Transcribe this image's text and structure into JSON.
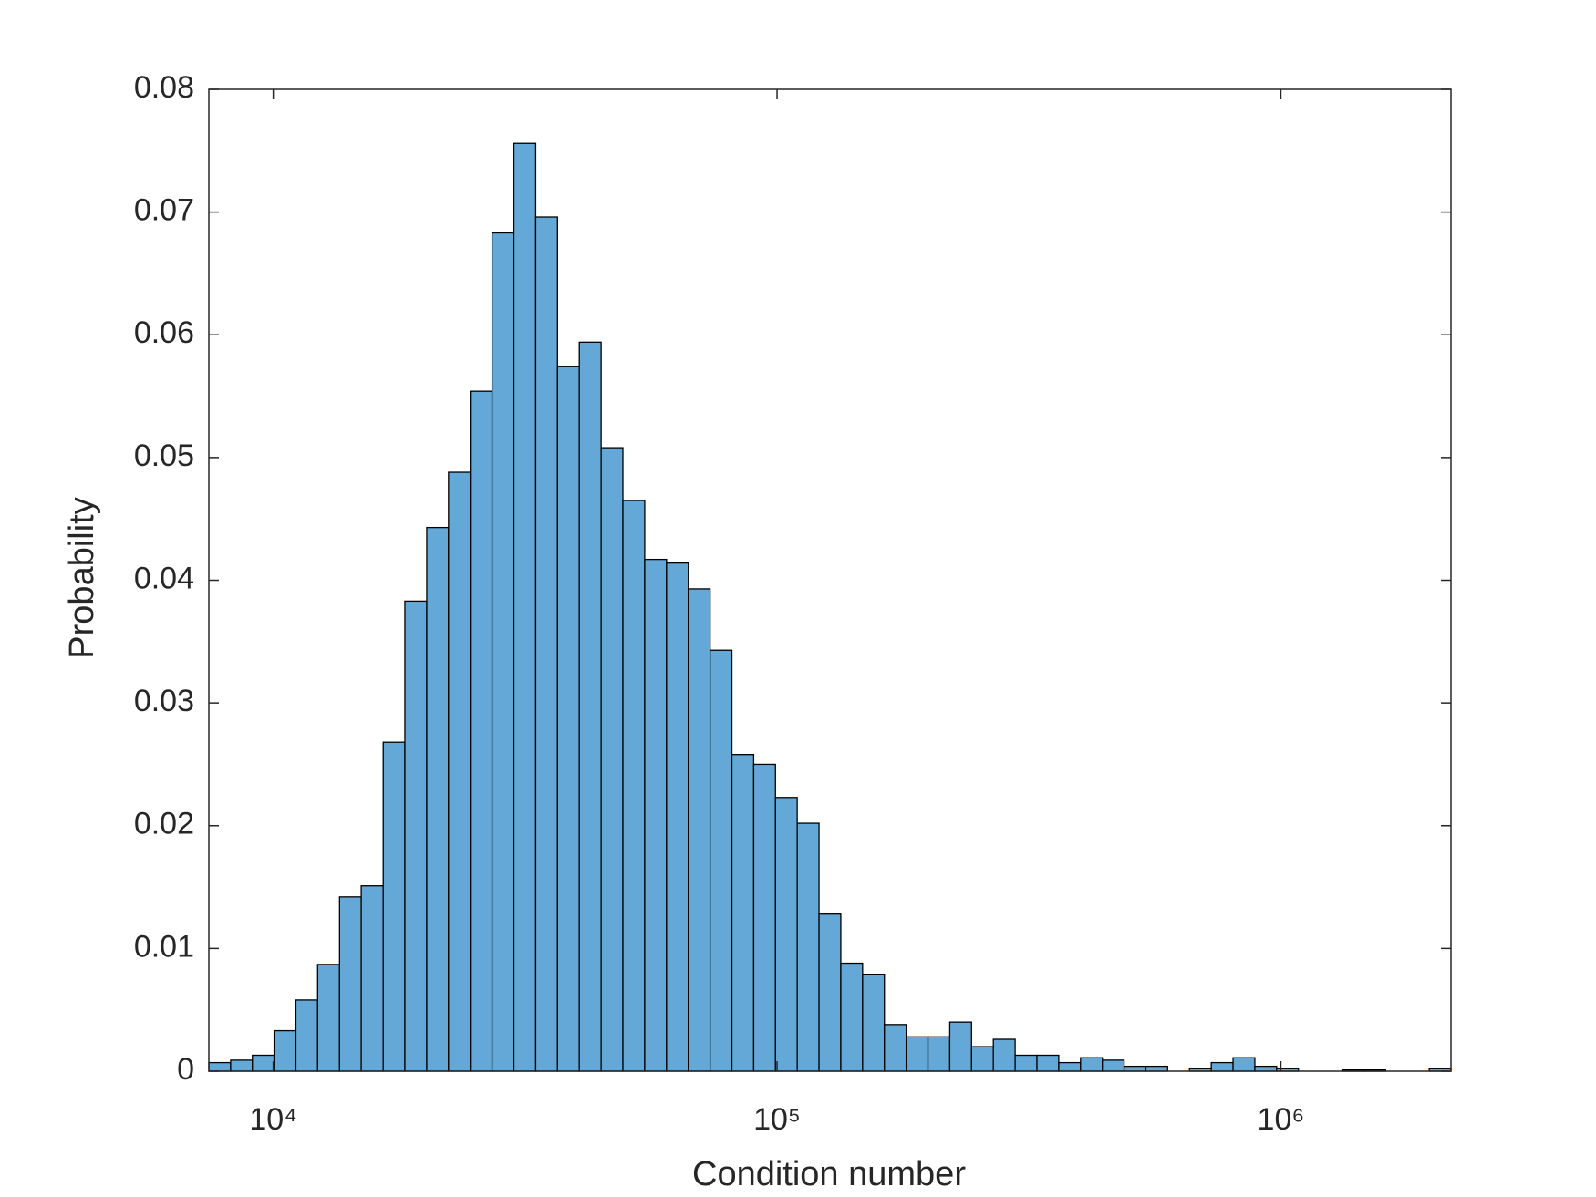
{
  "chart_data": {
    "type": "histogram",
    "x_label": "Condition number",
    "y_label": "Probability",
    "bins": [
      7450,
      8230,
      9090,
      10040,
      11090,
      12250,
      13540,
      14950,
      16530,
      18250,
      20170,
      22280,
      24610,
      27190,
      30040,
      33190,
      36660,
      40500,
      44750,
      49430,
      54610,
      60340,
      66660,
      73640,
      81350,
      89870,
      99270,
      109650,
      121140,
      133820,
      147840,
      163330,
      180430,
      199330,
      220200,
      243260,
      268740,
      296880,
      327970,
      362310,
      400250,
      442170,
      488480,
      539630,
      596130,
      658570,
      727540,
      803720,
      887890,
      980870,
      1083600,
      1197100,
      1322400,
      1460900,
      1613900,
      1782900,
      1969700,
      2176000
    ],
    "values": [
      0.0007,
      0.0009,
      0.0013,
      0.0033,
      0.0058,
      0.0087,
      0.0142,
      0.0151,
      0.0268,
      0.0383,
      0.0443,
      0.0488,
      0.0554,
      0.0683,
      0.0756,
      0.0696,
      0.0574,
      0.0594,
      0.0508,
      0.0465,
      0.0417,
      0.0414,
      0.0393,
      0.0343,
      0.0258,
      0.025,
      0.0223,
      0.0202,
      0.0128,
      0.0088,
      0.0079,
      0.0038,
      0.0028,
      0.0028,
      0.004,
      0.002,
      0.0026,
      0.0013,
      0.0013,
      0.0007,
      0.0011,
      0.0009,
      0.0004,
      0.0004,
      0,
      0.0002,
      0.0007,
      0.0011,
      0.0004,
      0.0002,
      0,
      0,
      0.0001,
      0.0001,
      0,
      0,
      0.0002
    ],
    "color": "#63a8d6",
    "edge_color": "#000000",
    "xlim": [
      7450,
      2176000
    ],
    "x_log_scale": true,
    "xticks": [
      {
        "value": 10000,
        "label": "10⁴"
      },
      {
        "value": 100000,
        "label": "10⁵"
      },
      {
        "value": 1000000,
        "label": "10⁶"
      }
    ],
    "ylim": [
      0,
      0.08
    ],
    "yticks": [
      0,
      0.01,
      0.02,
      0.03,
      0.04,
      0.05,
      0.06,
      0.07,
      0.08
    ]
  }
}
